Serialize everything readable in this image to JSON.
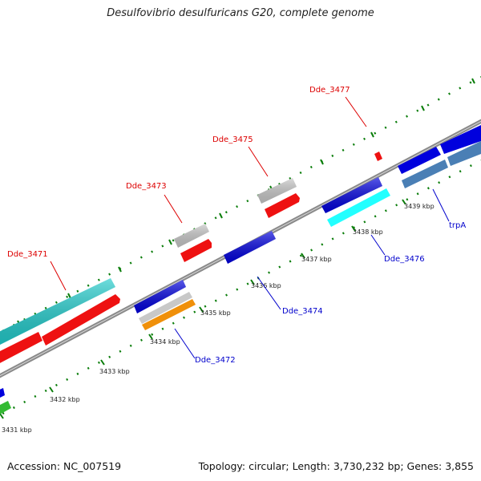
{
  "title": "Desulfovibrio desulfuricans G20, complete genome",
  "footer": {
    "accession": "Accession: NC_007519",
    "topology": "Topology: circular; Length: 3,730,232 bp; Genes: 3,855"
  },
  "kbp_labels": [
    "3431 kbp",
    "3432 kbp",
    "3433 kbp",
    "3434 kbp",
    "3435 kbp",
    "3436 kbp",
    "3437 kbp",
    "3438 kbp",
    "3439 kbp"
  ],
  "gene_labels": [
    {
      "text": "Dde_3471",
      "color": "#dd0000"
    },
    {
      "text": "Dde_3472",
      "color": "#0000cc"
    },
    {
      "text": "Dde_3473",
      "color": "#dd0000"
    },
    {
      "text": "Dde_3474",
      "color": "#0000cc"
    },
    {
      "text": "Dde_3475",
      "color": "#dd0000"
    },
    {
      "text": "Dde_3476",
      "color": "#0000cc"
    },
    {
      "text": "Dde_3477",
      "color": "#dd0000"
    },
    {
      "text": "trpA",
      "color": "#0000cc"
    }
  ],
  "colors": {
    "backbone": "#8a8a8a",
    "tick": "#0a7d0a",
    "cds_forward": "#ee1111",
    "cds_reverse": "#0000dd",
    "rna": "#c8c8c8",
    "feature_cyan": "#22cccc",
    "feature_light_cyan": "#22ffff",
    "feature_steel": "#4a7fb5",
    "feature_orange": "#f0900a",
    "feature_green": "#33bb33"
  }
}
